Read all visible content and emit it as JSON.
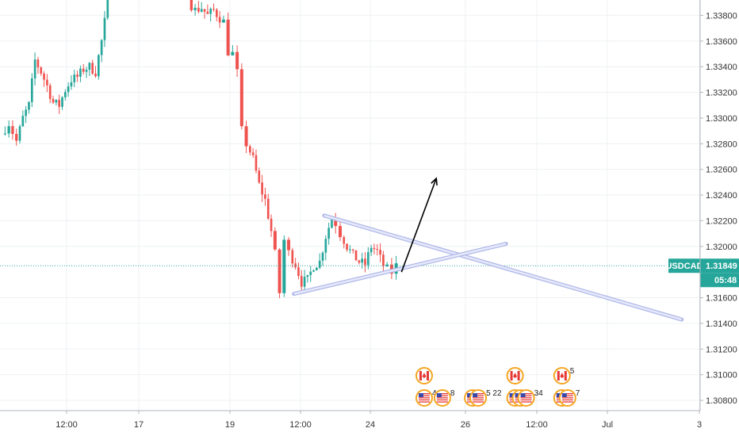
{
  "chart_data": {
    "type": "candlestick",
    "symbol": "USDCAD",
    "last_price": "1.31849",
    "countdown": "05:48",
    "y_ticks": [
      "1.33800",
      "1.33600",
      "1.33400",
      "1.33200",
      "1.33000",
      "1.32800",
      "1.32600",
      "1.32400",
      "1.32200",
      "1.32000",
      "1.31600",
      "1.31400",
      "1.31200",
      "1.31000",
      "1.30800"
    ],
    "y_tick_values": [
      1.338,
      1.336,
      1.334,
      1.332,
      1.33,
      1.328,
      1.326,
      1.324,
      1.322,
      1.32,
      1.316,
      1.314,
      1.312,
      1.31,
      1.308
    ],
    "x_ticks": [
      "12:00",
      "17",
      "19",
      "12:00",
      "24",
      "26",
      "12:00",
      "Jul",
      "3"
    ],
    "ylim": [
      1.3072,
      1.3392
    ],
    "colors": {
      "up": "#26a69a",
      "down": "#ef5350",
      "last_price": "#26a69a",
      "drawing": "#b0b8e8",
      "arrow": "#000000"
    },
    "price_path": [
      [
        0,
        1.3288
      ],
      [
        0.5,
        1.3296
      ],
      [
        1,
        1.3282
      ],
      [
        1.4,
        1.33
      ],
      [
        1.8,
        1.331
      ],
      [
        2.2,
        1.3345
      ],
      [
        2.6,
        1.3336
      ],
      [
        3,
        1.3325
      ],
      [
        3.4,
        1.3312
      ],
      [
        3.8,
        1.331
      ],
      [
        4.2,
        1.3322
      ],
      [
        4.6,
        1.333
      ],
      [
        5,
        1.3332
      ],
      [
        5.4,
        1.3338
      ],
      [
        5.8,
        1.334
      ],
      [
        6.2,
        1.3336
      ],
      [
        6.6,
        1.336
      ],
      [
        7,
        1.339
      ],
      [
        7.2,
        1.34
      ],
      [
        12.3,
        1.3392
      ],
      [
        12.8,
        1.3384
      ],
      [
        13.2,
        1.3386
      ],
      [
        13.6,
        1.338
      ],
      [
        14,
        1.3384
      ],
      [
        14.4,
        1.3378
      ],
      [
        14.7,
        1.3375
      ],
      [
        15,
        1.3352
      ],
      [
        15.3,
        1.335
      ],
      [
        15.6,
        1.3335
      ],
      [
        15.9,
        1.329
      ],
      [
        16.2,
        1.328
      ],
      [
        16.6,
        1.3268
      ],
      [
        17,
        1.3248
      ],
      [
        17.4,
        1.3236
      ],
      [
        17.8,
        1.3212
      ],
      [
        18.1,
        1.3194
      ],
      [
        18.4,
        1.3164
      ],
      [
        18.7,
        1.3205
      ],
      [
        19,
        1.3195
      ],
      [
        19.4,
        1.3186
      ],
      [
        19.8,
        1.3172
      ],
      [
        20.2,
        1.3174
      ],
      [
        20.6,
        1.3185
      ],
      [
        21,
        1.3188
      ],
      [
        21.4,
        1.3208
      ],
      [
        21.8,
        1.3222
      ],
      [
        22.1,
        1.3218
      ],
      [
        22.4,
        1.321
      ],
      [
        22.8,
        1.32
      ],
      [
        23.2,
        1.3193
      ],
      [
        23.6,
        1.3188
      ],
      [
        24,
        1.3186
      ],
      [
        24.4,
        1.32
      ],
      [
        24.8,
        1.3196
      ],
      [
        25.2,
        1.3185
      ],
      [
        25.5,
        1.3182
      ],
      [
        25.8,
        1.318
      ],
      [
        26.1,
        1.31849
      ]
    ],
    "trendlines": [
      {
        "name": "upper-trendline",
        "from": [
          21.2,
          1.3224
        ],
        "to": [
          44.8,
          1.3143
        ]
      },
      {
        "name": "lower-trendline",
        "from": [
          19.2,
          1.3163
        ],
        "to": [
          33.2,
          1.3202
        ]
      }
    ],
    "arrow": {
      "from": [
        26.3,
        1.318
      ],
      "to": [
        28.6,
        1.3253
      ]
    },
    "events": [
      {
        "x": 27.8,
        "flags": [
          "ca"
        ],
        "row": 1,
        "label": ""
      },
      {
        "x": 27.8,
        "flags": [
          "us"
        ],
        "row": 2,
        "label": "4"
      },
      {
        "x": 29.0,
        "flags": [
          "us"
        ],
        "row": 2,
        "label": "8"
      },
      {
        "x": 31.0,
        "flags": [
          "us",
          "us"
        ],
        "row": 2,
        "label": "5 22"
      },
      {
        "x": 33.8,
        "flags": [
          "ca"
        ],
        "row": 1,
        "label": ""
      },
      {
        "x": 33.8,
        "flags": [
          "us",
          "us",
          "us"
        ],
        "row": 2,
        "label": "34"
      },
      {
        "x": 36.9,
        "flags": [
          "ca"
        ],
        "row": 1,
        "label": "5"
      },
      {
        "x": 36.9,
        "flags": [
          "us",
          "us"
        ],
        "row": 2,
        "label": "7"
      }
    ]
  }
}
